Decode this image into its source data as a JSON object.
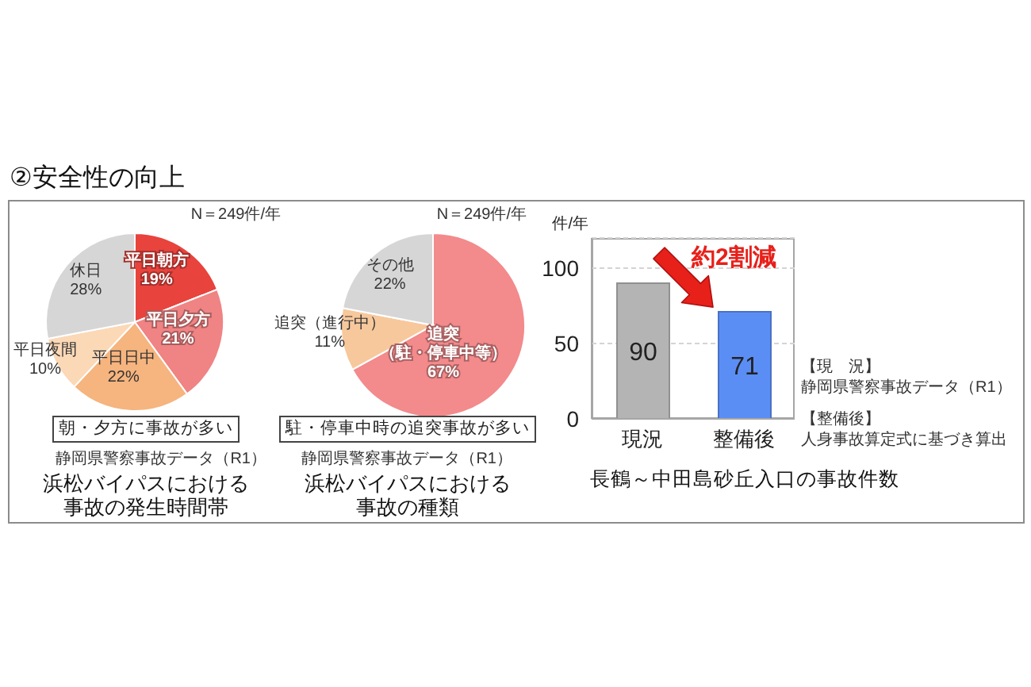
{
  "chart_data": [
    {
      "type": "pie",
      "title": "浜松バイパスにおける事故の発生時間帯",
      "categories": [
        "平日朝方",
        "平日夕方",
        "平日日中",
        "平日夜間",
        "休日"
      ],
      "values": [
        19,
        21,
        22,
        10,
        28
      ],
      "value_labels": [
        "19%",
        "21%",
        "22%",
        "10%",
        "28%"
      ],
      "colors": [
        "#e8433d",
        "#f08384",
        "#f6b47e",
        "#fbd8b6",
        "#d6d6d6"
      ],
      "annotations": [
        "②安全性の向上",
        "N＝249件/年",
        "朝・夕方に事故が多い",
        "静岡県警察事故データ（R1）"
      ]
    },
    {
      "type": "pie",
      "title": "浜松バイパスにおける事故の種類",
      "categories": [
        "追突（駐・停車中等）",
        "追突（進行中）",
        "その他"
      ],
      "values": [
        67,
        11,
        22
      ],
      "value_labels": [
        "67%",
        "11%",
        "22%"
      ],
      "colors": [
        "#f38a8c",
        "#f7c89c",
        "#d6d6d6"
      ],
      "annotations": [
        "N＝249件/年",
        "駐・停車中時の追突事故が多い",
        "静岡県警察事故データ（R1）"
      ]
    },
    {
      "type": "bar",
      "title": "長鶴～中田島砂丘入口の事故件数",
      "ylabel": "件/年",
      "categories": [
        "現況",
        "整備後"
      ],
      "values": [
        90,
        71
      ],
      "colors": [
        "#b4b4b4",
        "#5b8ef5"
      ],
      "ylim": [
        0,
        120
      ],
      "yticks": [
        0,
        50,
        100
      ],
      "grid": "y",
      "data_labels": true,
      "annotations": [
        "約2割減",
        "【現　況】",
        "静岡県警察事故データ（R1）",
        "【整備後】",
        "人身事故算定式に基づき算出"
      ]
    }
  ]
}
